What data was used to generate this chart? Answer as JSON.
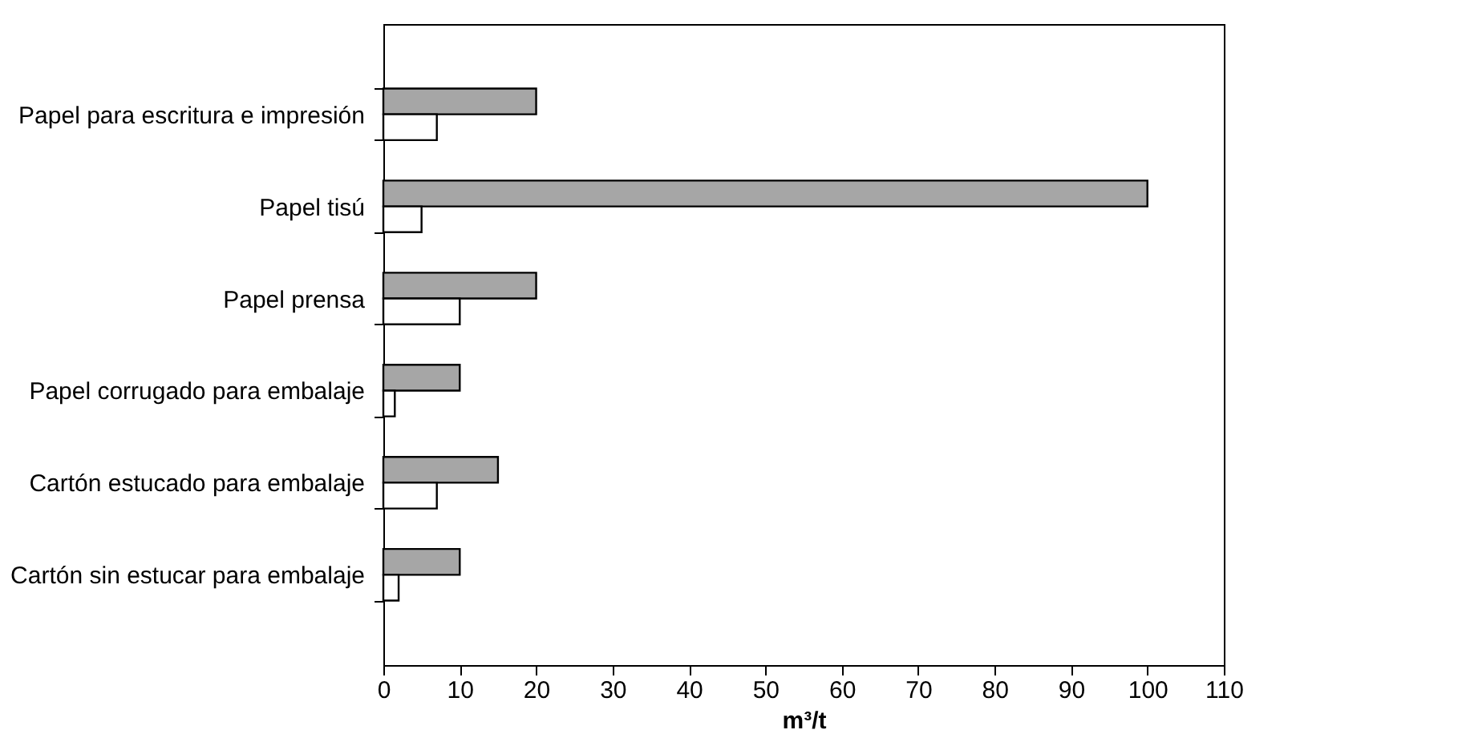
{
  "chart_data": {
    "type": "bar",
    "orientation": "horizontal",
    "xlabel": "m³/t",
    "categories": [
      "Papel para escritura e impresión",
      "Papel tisú",
      "Papel prensa",
      "Papel corrugado para embalaje",
      "Cartón estucado para embalaje",
      "Cartón sin estucar para embalaje"
    ],
    "series": [
      {
        "color": "#a6a6a6",
        "values": [
          20,
          100,
          20,
          10,
          15,
          10
        ]
      },
      {
        "color": "#ffffff",
        "values": [
          7,
          5,
          10,
          1.5,
          7,
          2
        ]
      }
    ],
    "xlim": [
      0,
      110
    ],
    "xticks": [
      0,
      10,
      20,
      30,
      40,
      50,
      60,
      70,
      80,
      90,
      100,
      110
    ],
    "grid": false,
    "legend": false
  }
}
